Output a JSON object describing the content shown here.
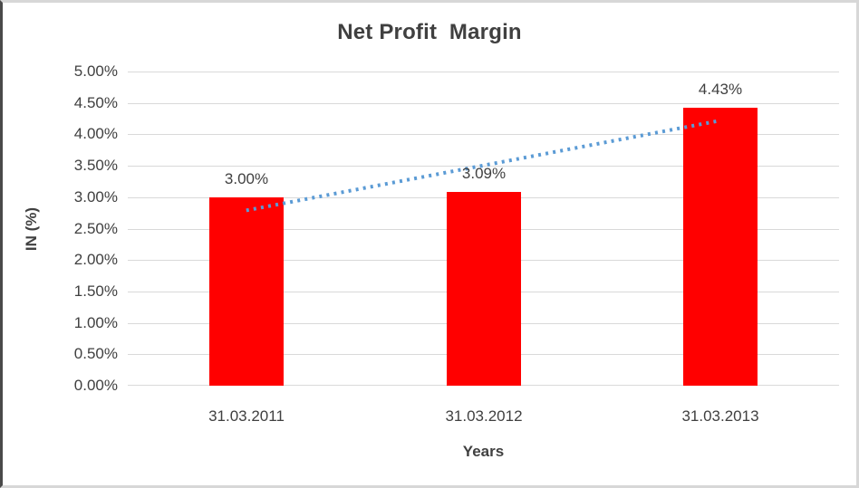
{
  "chart_data": {
    "type": "bar",
    "title": "Net Profit  Margin",
    "categories": [
      "31.03.2011",
      "31.03.2012",
      "31.03.2013"
    ],
    "values": [
      3.0,
      3.09,
      4.43
    ],
    "data_labels": [
      "3.00%",
      "3.09%",
      "4.43%"
    ],
    "xlabel": "Years",
    "ylabel": "IN (%)",
    "ylim": [
      0,
      5
    ],
    "ytick_step": 0.5,
    "ytick_labels": [
      "0.00%",
      "0.50%",
      "1.00%",
      "1.50%",
      "2.00%",
      "2.50%",
      "3.00%",
      "3.50%",
      "4.00%",
      "4.50%",
      "5.00%"
    ],
    "grid": true,
    "legend": "none",
    "bar_color": "#FF0000",
    "gridline_color": "#D9D9D9",
    "text_color": "#404040",
    "trendline": {
      "type": "linear",
      "style": "dotted",
      "color": "#5B9BD5",
      "start_value": 2.79,
      "end_value": 4.22
    }
  }
}
